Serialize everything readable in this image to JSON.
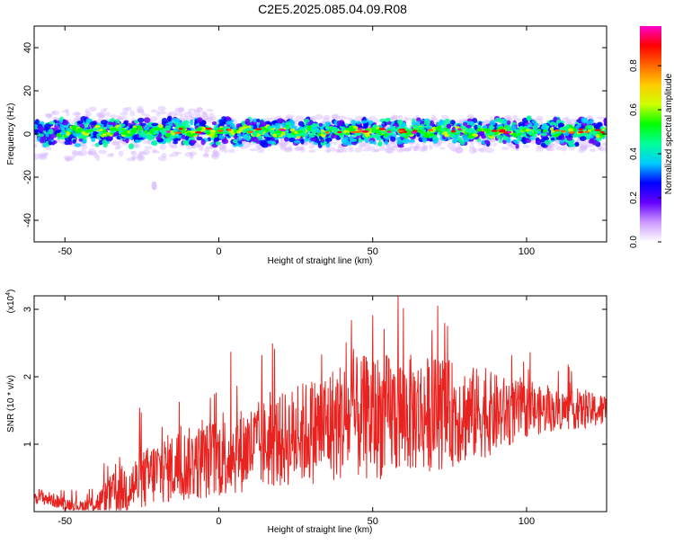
{
  "title": "C2E5.2025.085.04.09.R08",
  "chart_data": [
    {
      "type": "heatmap",
      "xlabel": "Height of straight line (km)",
      "ylabel": "Frequency (Hz)",
      "xlim": [
        -60,
        126
      ],
      "ylim": [
        -50,
        50
      ],
      "xticks": [
        "-50",
        "0",
        "50",
        "100"
      ],
      "xtick_values": [
        -50,
        0,
        50,
        100
      ],
      "yticks": [
        "-40",
        "-20",
        "0",
        "20",
        "40"
      ],
      "ytick_values": [
        -40,
        -20,
        0,
        20,
        40
      ],
      "band": {
        "center_hz": 0,
        "half_width_hz": 5,
        "note": "dominant energy concentrated around 0 Hz across all heights"
      },
      "colorbar": {
        "label": "Normalized spectral amplitude",
        "range": [
          0,
          0.98
        ],
        "ticks": [
          "0.0",
          "0.2",
          "0.4",
          "0.6",
          "0.8"
        ],
        "tick_values": [
          0.0,
          0.2,
          0.4,
          0.6,
          0.8
        ],
        "stops": [
          "#ffffff",
          "#cc99ff",
          "#6600ff",
          "#0000ff",
          "#00ccff",
          "#00ff99",
          "#00ff00",
          "#ccff00",
          "#ffcc00",
          "#ff6600",
          "#ff0000",
          "#ff00cc"
        ]
      }
    },
    {
      "type": "line",
      "xlabel": "Height of straight line (km)",
      "ylabel": "SNR (10 * v/v)",
      "scale_label": "(x10",
      "scale_exp": "4",
      "scale_close": ")",
      "xlim": [
        -60,
        126
      ],
      "ylim": [
        0,
        3.2
      ],
      "xticks": [
        "-50",
        "0",
        "50",
        "100"
      ],
      "xtick_values": [
        -50,
        0,
        50,
        100
      ],
      "yticks": [
        "1",
        "2",
        "3"
      ],
      "ytick_values": [
        1,
        2,
        3
      ],
      "series": [
        {
          "name": "SNR",
          "color": "#e8231f",
          "x": [
            -60,
            -50,
            -45,
            -40,
            -35,
            -30,
            -25,
            -20,
            -10,
            0,
            10,
            20,
            30,
            40,
            50,
            60,
            70,
            80,
            90,
            100,
            110,
            126
          ],
          "y": [
            0.25,
            0.12,
            0.08,
            0.12,
            0.25,
            0.35,
            0.45,
            0.6,
            0.7,
            0.8,
            0.95,
            1.05,
            1.2,
            1.35,
            1.4,
            1.45,
            1.45,
            1.45,
            1.45,
            1.5,
            1.5,
            1.5
          ],
          "spread": [
            0.12,
            0.1,
            0.08,
            0.15,
            0.3,
            0.4,
            0.45,
            0.5,
            0.55,
            0.6,
            0.65,
            0.7,
            0.8,
            0.9,
            0.95,
            0.9,
            0.85,
            0.75,
            0.6,
            0.4,
            0.3,
            0.25
          ]
        }
      ]
    }
  ]
}
